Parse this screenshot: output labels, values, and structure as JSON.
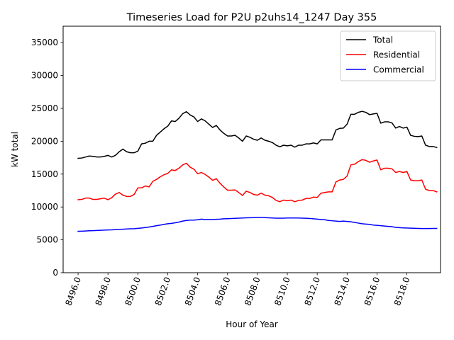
{
  "chart_data": {
    "type": "line",
    "title": "Timeseries Load for P2U p2uhs14_1247  Day 355",
    "xlabel": "Hour of Year",
    "ylabel": "kW total",
    "xlim": [
      8495.0,
      8520.25
    ],
    "ylim": [
      0,
      37500
    ],
    "xticks": [
      8496,
      8498,
      8500,
      8502,
      8504,
      8506,
      8508,
      8510,
      8512,
      8514,
      8516,
      8518
    ],
    "xtick_labels": [
      "8496.0",
      "8498.0",
      "8500.0",
      "8502.0",
      "8504.0",
      "8506.0",
      "8508.0",
      "8510.0",
      "8512.0",
      "8514.0",
      "8516.0",
      "8518.0"
    ],
    "yticks": [
      0,
      5000,
      10000,
      15000,
      20000,
      25000,
      30000,
      35000
    ],
    "ytick_labels": [
      "0",
      "5000",
      "10000",
      "15000",
      "20000",
      "25000",
      "30000",
      "35000"
    ],
    "legend_position": "upper right",
    "x_start": 8496.0,
    "x_step": 0.25,
    "series": [
      {
        "name": "Total",
        "color": "#000000",
        "values": [
          17400,
          17450,
          17600,
          17750,
          17700,
          17600,
          17600,
          17700,
          17850,
          17600,
          17850,
          18400,
          18800,
          18400,
          18250,
          18250,
          18500,
          19600,
          19700,
          20000,
          20000,
          20900,
          21400,
          21900,
          22300,
          23100,
          23000,
          23500,
          24200,
          24500,
          24000,
          23700,
          23000,
          23400,
          23100,
          22600,
          22100,
          22400,
          21700,
          21200,
          20800,
          20800,
          20900,
          20500,
          20000,
          20800,
          20600,
          20300,
          20150,
          20500,
          20150,
          20000,
          19800,
          19400,
          19150,
          19400,
          19300,
          19400,
          19100,
          19400,
          19400,
          19600,
          19600,
          19750,
          19600,
          20200,
          20200,
          20200,
          20200,
          21700,
          21950,
          22000,
          22600,
          24100,
          24100,
          24400,
          24550,
          24400,
          24050,
          24150,
          24250,
          22750,
          22950,
          22950,
          22800,
          22000,
          22250,
          22000,
          22150,
          20900,
          20750,
          20700,
          20800,
          19400,
          19200,
          19200,
          19050
        ]
      },
      {
        "name": "Residential",
        "color": "#ff0000",
        "values": [
          11100,
          11150,
          11350,
          11350,
          11150,
          11150,
          11250,
          11350,
          11100,
          11400,
          11950,
          12200,
          11800,
          11600,
          11600,
          11900,
          12900,
          12900,
          13200,
          13050,
          13900,
          14200,
          14600,
          14900,
          15100,
          15650,
          15550,
          15900,
          16400,
          16650,
          16050,
          15750,
          15050,
          15250,
          14950,
          14550,
          14050,
          14300,
          13600,
          13050,
          12550,
          12550,
          12600,
          12200,
          11750,
          12400,
          12200,
          11900,
          11800,
          12100,
          11800,
          11700,
          11450,
          11000,
          10800,
          11050,
          10950,
          11050,
          10800,
          11000,
          11050,
          11300,
          11300,
          11500,
          11450,
          12100,
          12200,
          12300,
          12300,
          13800,
          14100,
          14200,
          14700,
          16400,
          16500,
          16900,
          17200,
          17100,
          16800,
          17000,
          17150,
          15650,
          15900,
          15900,
          15800,
          15250,
          15400,
          15250,
          15400,
          14100,
          14000,
          14000,
          14100,
          12700,
          12500,
          12500,
          12300
        ]
      },
      {
        "name": "Commercial",
        "color": "#0000ff",
        "values": [
          6300,
          6320,
          6350,
          6380,
          6400,
          6420,
          6450,
          6480,
          6500,
          6520,
          6560,
          6600,
          6620,
          6650,
          6680,
          6700,
          6750,
          6800,
          6870,
          6950,
          7050,
          7150,
          7250,
          7350,
          7450,
          7500,
          7600,
          7700,
          7850,
          7950,
          8000,
          8000,
          8050,
          8150,
          8100,
          8100,
          8100,
          8120,
          8150,
          8200,
          8220,
          8250,
          8270,
          8300,
          8320,
          8350,
          8370,
          8380,
          8400,
          8400,
          8380,
          8350,
          8320,
          8300,
          8300,
          8300,
          8320,
          8330,
          8320,
          8320,
          8300,
          8280,
          8250,
          8200,
          8150,
          8100,
          8050,
          7950,
          7900,
          7850,
          7800,
          7850,
          7800,
          7750,
          7650,
          7550,
          7450,
          7400,
          7350,
          7250,
          7200,
          7150,
          7100,
          7050,
          7000,
          6900,
          6850,
          6820,
          6800,
          6780,
          6760,
          6740,
          6720,
          6720,
          6720,
          6730,
          6730
        ]
      }
    ]
  }
}
